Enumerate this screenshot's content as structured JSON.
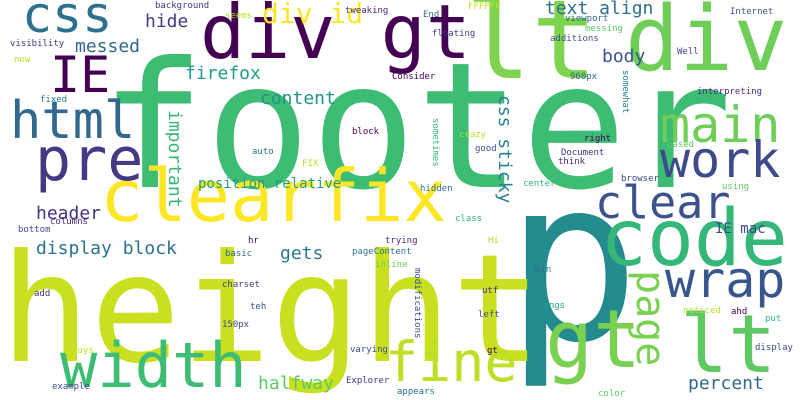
{
  "palette": {
    "background": "#ffffff",
    "colors": [
      "#440154",
      "#482878",
      "#3e4a89",
      "#31688e",
      "#26828e",
      "#1f9e89",
      "#35b779",
      "#6ece58",
      "#b5de2b",
      "#fde725"
    ]
  },
  "words": [
    {
      "text": "footer",
      "color": "#3dbc74"
    },
    {
      "text": "p",
      "color": "#238a8d"
    },
    {
      "text": "height",
      "color": "#c8e020"
    },
    {
      "text": "div",
      "color": "#6ece58"
    },
    {
      "text": "lt",
      "color": "#7fd34e"
    },
    {
      "text": "div gt",
      "color": "#440154"
    },
    {
      "text": "clearfix",
      "color": "#fde725"
    },
    {
      "text": "code",
      "color": "#35b779"
    },
    {
      "text": "gt",
      "color": "#7ad151"
    },
    {
      "text": "lt",
      "color": "#5ec962"
    },
    {
      "text": "pre",
      "color": "#443983"
    },
    {
      "text": "width",
      "color": "#3dbc74"
    },
    {
      "text": "css",
      "color": "#2c728e"
    },
    {
      "text": "IE",
      "color": "#440154"
    },
    {
      "text": "html",
      "color": "#31688e"
    },
    {
      "text": "main",
      "color": "#6ece58"
    },
    {
      "text": "work",
      "color": "#3e4a89"
    },
    {
      "text": "clear",
      "color": "#3b528b"
    },
    {
      "text": "wrap",
      "color": "#39568c"
    },
    {
      "text": "fine",
      "color": "#bddf26"
    },
    {
      "text": "page",
      "color": "#7ad151"
    },
    {
      "text": "div id",
      "color": "#fde725"
    },
    {
      "text": "messed",
      "color": "#31688e"
    },
    {
      "text": "hide",
      "color": "#443983"
    },
    {
      "text": "text align",
      "color": "#2c728e"
    },
    {
      "text": "body",
      "color": "#3b528b"
    },
    {
      "text": "firefox",
      "color": "#1f9e89"
    },
    {
      "text": "content",
      "color": "#21918c"
    },
    {
      "text": "important",
      "color": "#35b779"
    },
    {
      "text": "css sticky",
      "color": "#26828e"
    },
    {
      "text": "position relative",
      "color": "#1f9e89"
    },
    {
      "text": "header",
      "color": "#46327e"
    },
    {
      "text": "display block",
      "color": "#2c728e"
    },
    {
      "text": "gets",
      "color": "#2a788e"
    },
    {
      "text": "IE mac",
      "color": "#3e4a89"
    },
    {
      "text": "percent",
      "color": "#31688e"
    },
    {
      "text": "halfway",
      "color": "#5ec962"
    },
    {
      "text": "visibility",
      "color": "#46327e"
    },
    {
      "text": "now",
      "color": "#b5de2b"
    },
    {
      "text": "fixed",
      "color": "#287c8e"
    },
    {
      "text": "columns",
      "color": "#482878"
    },
    {
      "text": "bottom",
      "color": "#3e4a89"
    },
    {
      "text": "add",
      "color": "#46327e"
    },
    {
      "text": "guys",
      "color": "#c8e020"
    },
    {
      "text": "example",
      "color": "#3e4a89"
    },
    {
      "text": "background",
      "color": "#46327e"
    },
    {
      "text": "seems",
      "color": "#b5de2b"
    },
    {
      "text": "tweaking",
      "color": "#482878"
    },
    {
      "text": "FFFFFF",
      "color": "#c8e020"
    },
    {
      "text": "viewport",
      "color": "#31688e"
    },
    {
      "text": "Internet",
      "color": "#3b528b"
    },
    {
      "text": "End",
      "color": "#2c728e"
    },
    {
      "text": "messing",
      "color": "#5ec962"
    },
    {
      "text": "floating",
      "color": "#443983"
    },
    {
      "text": "additions",
      "color": "#3b528b"
    },
    {
      "text": "Well",
      "color": "#3e4a89"
    },
    {
      "text": "960px",
      "color": "#31688e"
    },
    {
      "text": "Consider",
      "color": "#440154"
    },
    {
      "text": "somewhat",
      "color": "#26828e"
    },
    {
      "text": "interpreting",
      "color": "#482878"
    },
    {
      "text": "block",
      "color": "#440154"
    },
    {
      "text": "sometimes",
      "color": "#35b779"
    },
    {
      "text": "crazy",
      "color": "#b5de2b"
    },
    {
      "text": "right",
      "color": "#440154"
    },
    {
      "text": "good",
      "color": "#3b528b"
    },
    {
      "text": "Document",
      "color": "#46327e"
    },
    {
      "text": "based",
      "color": "#5ec962"
    },
    {
      "text": "auto",
      "color": "#2c728e"
    },
    {
      "text": "FIX",
      "color": "#b5de2b"
    },
    {
      "text": "center",
      "color": "#35b779"
    },
    {
      "text": "think",
      "color": "#482878"
    },
    {
      "text": "browser",
      "color": "#3e4a89"
    },
    {
      "text": "using",
      "color": "#5ec962"
    },
    {
      "text": "hidden",
      "color": "#2c728e"
    },
    {
      "text": "class",
      "color": "#35b779"
    },
    {
      "text": "basic",
      "color": "#31688e"
    },
    {
      "text": "hr",
      "color": "#440154"
    },
    {
      "text": "trying",
      "color": "#482878"
    },
    {
      "text": "pageContent",
      "color": "#2c728e"
    },
    {
      "text": "Hi",
      "color": "#b5de2b"
    },
    {
      "text": "inline",
      "color": "#6ece58"
    },
    {
      "text": "min",
      "color": "#2c728e"
    },
    {
      "text": "charset",
      "color": "#443983"
    },
    {
      "text": "teh",
      "color": "#3b528b"
    },
    {
      "text": "modifications",
      "color": "#3e4a89"
    },
    {
      "text": "utf",
      "color": "#482878"
    },
    {
      "text": "hangs",
      "color": "#1f9e89"
    },
    {
      "text": "noticed",
      "color": "#b5de2b"
    },
    {
      "text": "ahd",
      "color": "#440154"
    },
    {
      "text": "150px",
      "color": "#3e4a89"
    },
    {
      "text": "left",
      "color": "#3b528b"
    },
    {
      "text": "put",
      "color": "#35b779"
    },
    {
      "text": "varying",
      "color": "#3b528b"
    },
    {
      "text": "gt",
      "color": "#440154"
    },
    {
      "text": "display",
      "color": "#3e4a89"
    },
    {
      "text": "Explorer",
      "color": "#46327e"
    },
    {
      "text": "appears",
      "color": "#2c728e"
    },
    {
      "text": "color",
      "color": "#5ec962"
    }
  ]
}
